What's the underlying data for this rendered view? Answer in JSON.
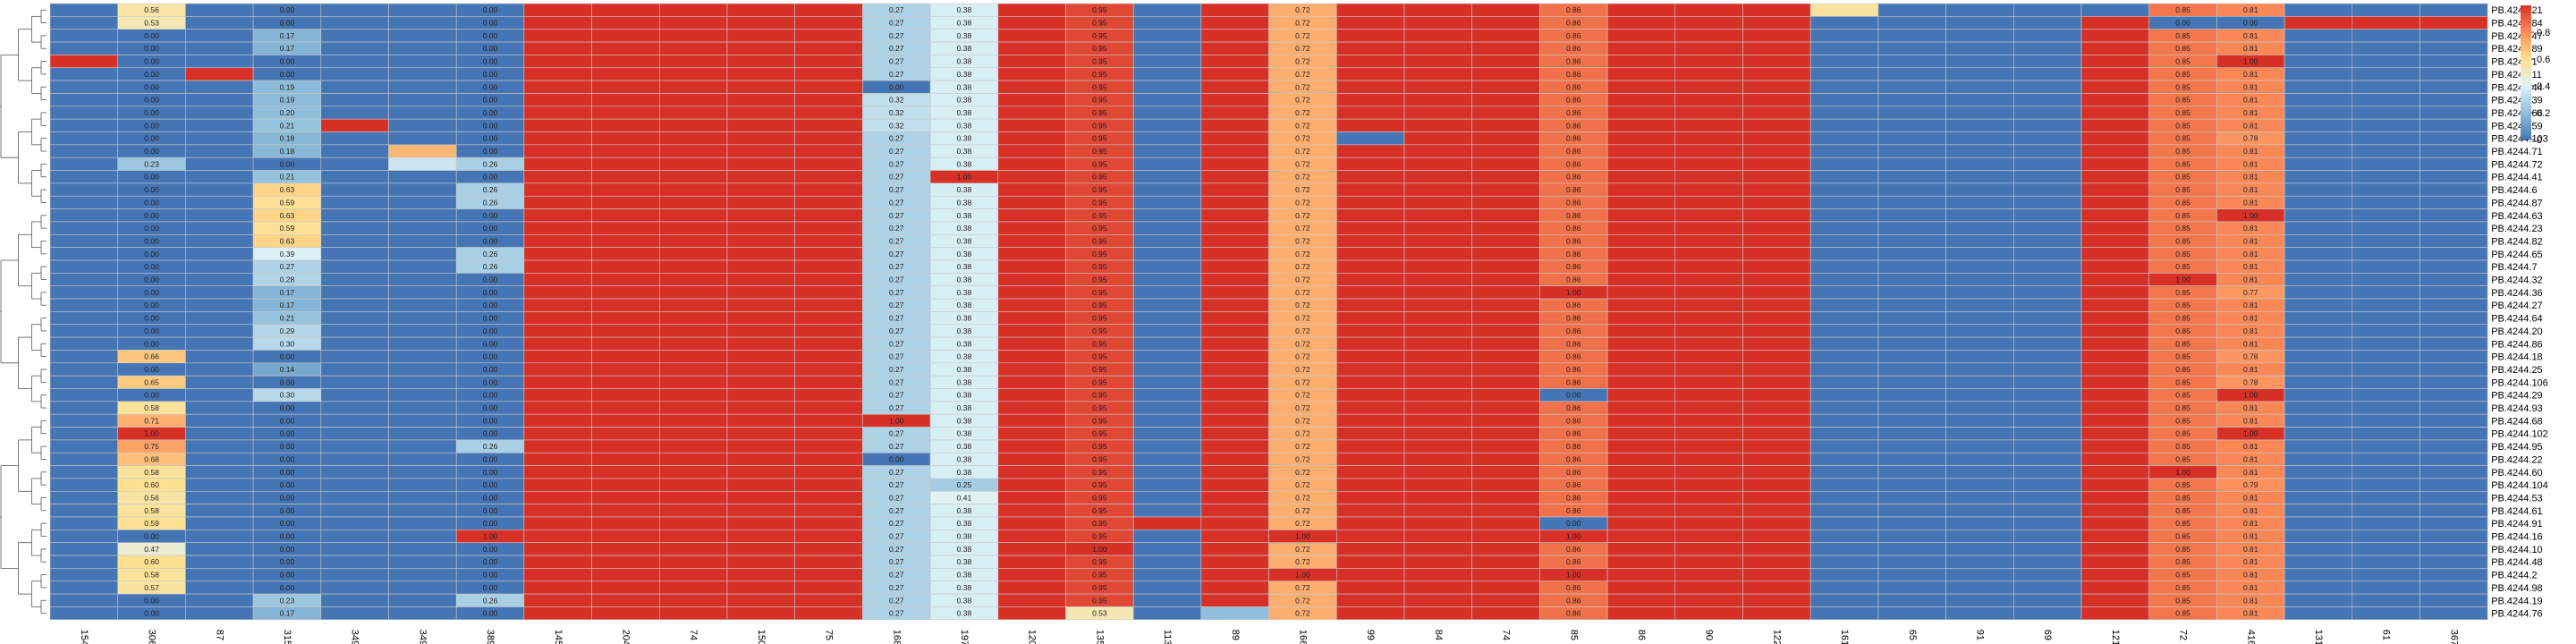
{
  "chart_data": {
    "type": "heatmap",
    "title": "",
    "xlabel": "",
    "ylabel": "",
    "columns": [
      "154",
      "306",
      "87",
      "315",
      "349",
      "349",
      "389",
      "145",
      "204",
      "74",
      "150",
      "75",
      "168",
      "197",
      "120",
      "135",
      "113",
      "89",
      "166",
      "99",
      "84",
      "74",
      "85",
      "86",
      "90",
      "122",
      "161",
      "65",
      "91",
      "69",
      "121",
      "72",
      "416",
      "131",
      "61",
      "367"
    ],
    "rows": [
      "PB.4244.21",
      "PB.4244.84",
      "PB.4244.47",
      "PB.4244.89",
      "PB.4244.1",
      "PB.4244.11",
      "PB.4244.44",
      "PB.4244.39",
      "PB.4244.66",
      "PB.4244.59",
      "PB.4244.103",
      "PB.4244.71",
      "PB.4244.72",
      "PB.4244.41",
      "PB.4244.6",
      "PB.4244.87",
      "PB.4244.63",
      "PB.4244.23",
      "PB.4244.82",
      "PB.4244.65",
      "PB.4244.7",
      "PB.4244.32",
      "PB.4244.36",
      "PB.4244.27",
      "PB.4244.64",
      "PB.4244.20",
      "PB.4244.86",
      "PB.4244.18",
      "PB.4244.25",
      "PB.4244.106",
      "PB.4244.29",
      "PB.4244.93",
      "PB.4244.68",
      "PB.4244.102",
      "PB.4244.95",
      "PB.4244.22",
      "PB.4244.60",
      "PB.4244.104",
      "PB.4244.53",
      "PB.4244.61",
      "PB.4244.91",
      "PB.4244.16",
      "PB.4244.10",
      "PB.4244.48",
      "PB.4244.2",
      "PB.4244.98",
      "PB.4244.19",
      "PB.4244.76"
    ],
    "base_values": [
      0,
      0,
      0,
      0,
      0,
      0,
      0,
      1,
      1,
      1,
      1,
      1,
      0.27,
      0.38,
      1,
      0.95,
      0,
      1,
      0.72,
      1,
      1,
      1,
      0.86,
      1,
      1,
      1,
      0,
      0,
      0,
      0,
      1,
      0.85,
      0.81,
      0,
      0,
      0
    ],
    "labeled_columns": [
      1,
      3,
      6,
      12,
      13,
      15,
      18,
      22,
      31,
      32
    ],
    "overrides": [
      [
        0,
        1,
        0.56
      ],
      [
        0,
        26,
        0.57
      ],
      [
        0,
        30,
        0
      ],
      [
        0,
        31,
        0.85
      ],
      [
        0,
        32,
        0.81
      ],
      [
        1,
        1,
        0.53
      ],
      [
        1,
        31,
        0
      ],
      [
        1,
        32,
        0
      ],
      [
        1,
        33,
        1
      ],
      [
        1,
        34,
        1
      ],
      [
        1,
        35,
        1
      ],
      [
        2,
        3,
        0.17
      ],
      [
        2,
        25,
        1
      ],
      [
        3,
        3,
        0.17
      ],
      [
        3,
        25,
        1
      ],
      [
        3,
        27,
        0
      ],
      [
        3,
        32,
        0.81
      ],
      [
        4,
        0,
        1
      ],
      [
        4,
        32,
        1
      ],
      [
        5,
        2,
        1
      ],
      [
        5,
        12,
        0.27
      ],
      [
        5,
        13,
        0.38
      ],
      [
        6,
        3,
        0.19
      ],
      [
        6,
        12,
        0
      ],
      [
        7,
        3,
        0.19
      ],
      [
        7,
        12,
        0.32
      ],
      [
        8,
        3,
        0.2
      ],
      [
        8,
        12,
        0.32
      ],
      [
        9,
        3,
        0.21
      ],
      [
        9,
        4,
        1
      ],
      [
        9,
        12,
        0.32
      ],
      [
        10,
        3,
        0.18
      ],
      [
        10,
        19,
        0
      ],
      [
        10,
        32,
        0.78
      ],
      [
        11,
        3,
        0.18
      ],
      [
        11,
        5,
        0.7
      ],
      [
        12,
        1,
        0.23
      ],
      [
        12,
        5,
        0.35
      ],
      [
        12,
        6,
        0.26
      ],
      [
        13,
        3,
        0.21
      ],
      [
        13,
        13,
        1
      ],
      [
        14,
        3,
        0.63
      ],
      [
        14,
        6,
        0.26
      ],
      [
        15,
        3,
        0.59
      ],
      [
        15,
        6,
        0.26
      ],
      [
        16,
        3,
        0.63
      ],
      [
        16,
        32,
        1
      ],
      [
        17,
        3,
        0.59
      ],
      [
        18,
        3,
        0.63
      ],
      [
        19,
        3,
        0.39
      ],
      [
        19,
        6,
        0.26
      ],
      [
        20,
        3,
        0.27
      ],
      [
        20,
        6,
        0.26
      ],
      [
        21,
        3,
        0.28
      ],
      [
        21,
        31,
        1
      ],
      [
        22,
        3,
        0.17
      ],
      [
        22,
        22,
        1
      ],
      [
        22,
        32,
        0.77
      ],
      [
        23,
        3,
        0.17
      ],
      [
        23,
        11,
        1
      ],
      [
        24,
        3,
        0.21
      ],
      [
        24,
        9,
        1
      ],
      [
        25,
        3,
        0.29
      ],
      [
        26,
        3,
        0.3
      ],
      [
        27,
        1,
        0.66
      ],
      [
        27,
        8,
        1
      ],
      [
        27,
        32,
        0.78
      ],
      [
        28,
        3,
        0.14
      ],
      [
        29,
        1,
        0.65
      ],
      [
        29,
        32,
        0.78
      ],
      [
        30,
        3,
        0.3
      ],
      [
        30,
        22,
        0
      ],
      [
        30,
        32,
        1
      ],
      [
        31,
        1,
        0.58
      ],
      [
        31,
        11,
        1
      ],
      [
        31,
        27,
        0
      ],
      [
        31,
        32,
        0.81
      ],
      [
        32,
        1,
        0.71
      ],
      [
        32,
        12,
        1
      ],
      [
        33,
        1,
        1
      ],
      [
        33,
        31,
        0.85
      ],
      [
        33,
        32,
        1
      ],
      [
        34,
        1,
        0.75
      ],
      [
        34,
        6,
        0.26
      ],
      [
        35,
        1,
        0.68
      ],
      [
        35,
        12,
        0
      ],
      [
        36,
        1,
        0.58
      ],
      [
        36,
        31,
        1
      ],
      [
        37,
        1,
        0.6
      ],
      [
        37,
        13,
        0.25
      ],
      [
        37,
        32,
        0.79
      ],
      [
        38,
        1,
        0.56
      ],
      [
        38,
        13,
        0.41
      ],
      [
        39,
        1,
        0.58
      ],
      [
        39,
        13,
        0.38
      ],
      [
        40,
        1,
        0.59
      ],
      [
        40,
        16,
        1
      ],
      [
        40,
        17,
        1
      ],
      [
        40,
        22,
        0
      ],
      [
        41,
        6,
        1
      ],
      [
        41,
        18,
        1
      ],
      [
        41,
        22,
        1
      ],
      [
        42,
        1,
        0.47
      ],
      [
        42,
        15,
        1
      ],
      [
        43,
        1,
        0.6
      ],
      [
        44,
        1,
        0.58
      ],
      [
        44,
        18,
        1
      ],
      [
        44,
        22,
        1
      ],
      [
        45,
        1,
        0.57
      ],
      [
        46,
        3,
        0.23
      ],
      [
        46,
        6,
        0.26
      ],
      [
        47,
        3,
        0.17
      ],
      [
        47,
        15,
        0.53
      ],
      [
        47,
        17,
        0.2
      ]
    ],
    "color_scale": {
      "stops": [
        0,
        0.2,
        0.4,
        0.6,
        0.8,
        1
      ],
      "colors": [
        "#4575b4",
        "#91bfdb",
        "#e0f3f8",
        "#fee090",
        "#fc8d59",
        "#d73027"
      ]
    },
    "legend": {
      "position": "top-right",
      "ticks": [
        0,
        0.2,
        0.4,
        0.6,
        0.8
      ]
    },
    "dendrogram": "left",
    "grid": true
  }
}
